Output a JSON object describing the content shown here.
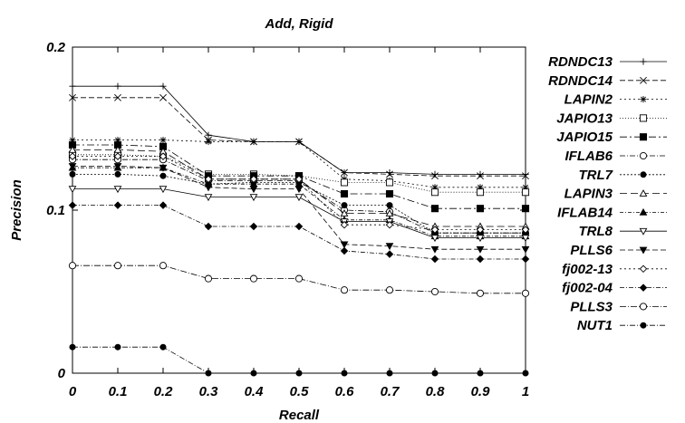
{
  "chart_data": {
    "type": "line",
    "title": "Add, Rigid",
    "xlabel": "Recall",
    "ylabel": "Precision",
    "xlim": [
      0,
      1
    ],
    "ylim": [
      0,
      0.2
    ],
    "x": [
      0,
      0.1,
      0.2,
      0.3,
      0.4,
      0.5,
      0.6,
      0.7,
      0.8,
      0.9,
      1
    ],
    "x_ticks": [
      "0",
      "0.1",
      "0.2",
      "0.3",
      "0.4",
      "0.5",
      "0.6",
      "0.7",
      "0.8",
      "0.9",
      "1"
    ],
    "y_ticks": [
      "0",
      "0.1",
      "0.2"
    ],
    "grid": false,
    "legend_position": "right",
    "series": [
      {
        "name": "RDNDC13",
        "marker": "plus",
        "dash": "solid",
        "values": [
          0.176,
          0.176,
          0.176,
          0.146,
          0.142,
          0.142,
          0.123,
          0.123,
          0.122,
          0.122,
          0.122
        ]
      },
      {
        "name": "RDNDC14",
        "marker": "x",
        "dash": "6,3",
        "values": [
          0.169,
          0.169,
          0.169,
          0.143,
          0.142,
          0.142,
          0.123,
          0.122,
          0.121,
          0.121,
          0.121
        ]
      },
      {
        "name": "LAPIN2",
        "marker": "asterisk",
        "dash": "2,3",
        "values": [
          0.143,
          0.143,
          0.143,
          0.142,
          0.142,
          0.142,
          0.119,
          0.118,
          0.114,
          0.114,
          0.114
        ]
      },
      {
        "name": "JAPIO13",
        "marker": "square-open",
        "dash": "1,2",
        "values": [
          0.134,
          0.134,
          0.133,
          0.122,
          0.122,
          0.121,
          0.117,
          0.117,
          0.111,
          0.111,
          0.111
        ]
      },
      {
        "name": "JAPIO15",
        "marker": "square-filled",
        "dash": "8,3,2,3",
        "values": [
          0.14,
          0.14,
          0.139,
          0.121,
          0.121,
          0.121,
          0.11,
          0.11,
          0.101,
          0.101,
          0.101
        ]
      },
      {
        "name": "IFLAB6",
        "marker": "circle-open",
        "dash": "6,2,1,2",
        "values": [
          0.131,
          0.131,
          0.131,
          0.118,
          0.118,
          0.118,
          0.1,
          0.099,
          0.086,
          0.086,
          0.086
        ]
      },
      {
        "name": "TRL7",
        "marker": "circle-filled",
        "dash": "2,2",
        "values": [
          0.122,
          0.122,
          0.121,
          0.116,
          0.117,
          0.117,
          0.103,
          0.103,
          0.086,
          0.086,
          0.086
        ]
      },
      {
        "name": "LAPIN3",
        "marker": "triangle-open",
        "dash": "8,4",
        "values": [
          0.137,
          0.137,
          0.136,
          0.119,
          0.119,
          0.119,
          0.098,
          0.098,
          0.09,
          0.09,
          0.09
        ]
      },
      {
        "name": "IFLAB14",
        "marker": "triangle-filled",
        "dash": "4,2,1,2",
        "values": [
          0.126,
          0.126,
          0.126,
          0.116,
          0.116,
          0.116,
          0.094,
          0.094,
          0.084,
          0.084,
          0.084
        ]
      },
      {
        "name": "TRL8",
        "marker": "triangle-down-open",
        "dash": "solid",
        "values": [
          0.113,
          0.113,
          0.113,
          0.108,
          0.108,
          0.108,
          0.093,
          0.093,
          0.083,
          0.083,
          0.083
        ]
      },
      {
        "name": "PLLS6",
        "marker": "triangle-down-filled",
        "dash": "6,3",
        "values": [
          0.127,
          0.127,
          0.126,
          0.114,
          0.113,
          0.113,
          0.079,
          0.078,
          0.076,
          0.076,
          0.076
        ]
      },
      {
        "name": "fj002-13",
        "marker": "diamond-open",
        "dash": "2,3",
        "values": [
          0.133,
          0.133,
          0.133,
          0.119,
          0.119,
          0.119,
          0.091,
          0.091,
          0.088,
          0.088,
          0.088
        ]
      },
      {
        "name": "fj002-04",
        "marker": "diamond-filled",
        "dash": "5,2,1,2",
        "values": [
          0.103,
          0.103,
          0.103,
          0.09,
          0.09,
          0.09,
          0.075,
          0.073,
          0.07,
          0.07,
          0.07
        ]
      },
      {
        "name": "PLLS3",
        "marker": "circle-open",
        "dash": "7,2,1,2",
        "values": [
          0.066,
          0.066,
          0.066,
          0.058,
          0.058,
          0.058,
          0.051,
          0.051,
          0.05,
          0.049,
          0.049
        ]
      },
      {
        "name": "NUT1",
        "marker": "circle-filled",
        "dash": "6,2,1,2",
        "values": [
          0.016,
          0.016,
          0.016,
          0.0,
          0.0,
          0.0,
          0.0,
          0.0,
          0.0,
          0.0,
          0.0
        ]
      }
    ]
  }
}
